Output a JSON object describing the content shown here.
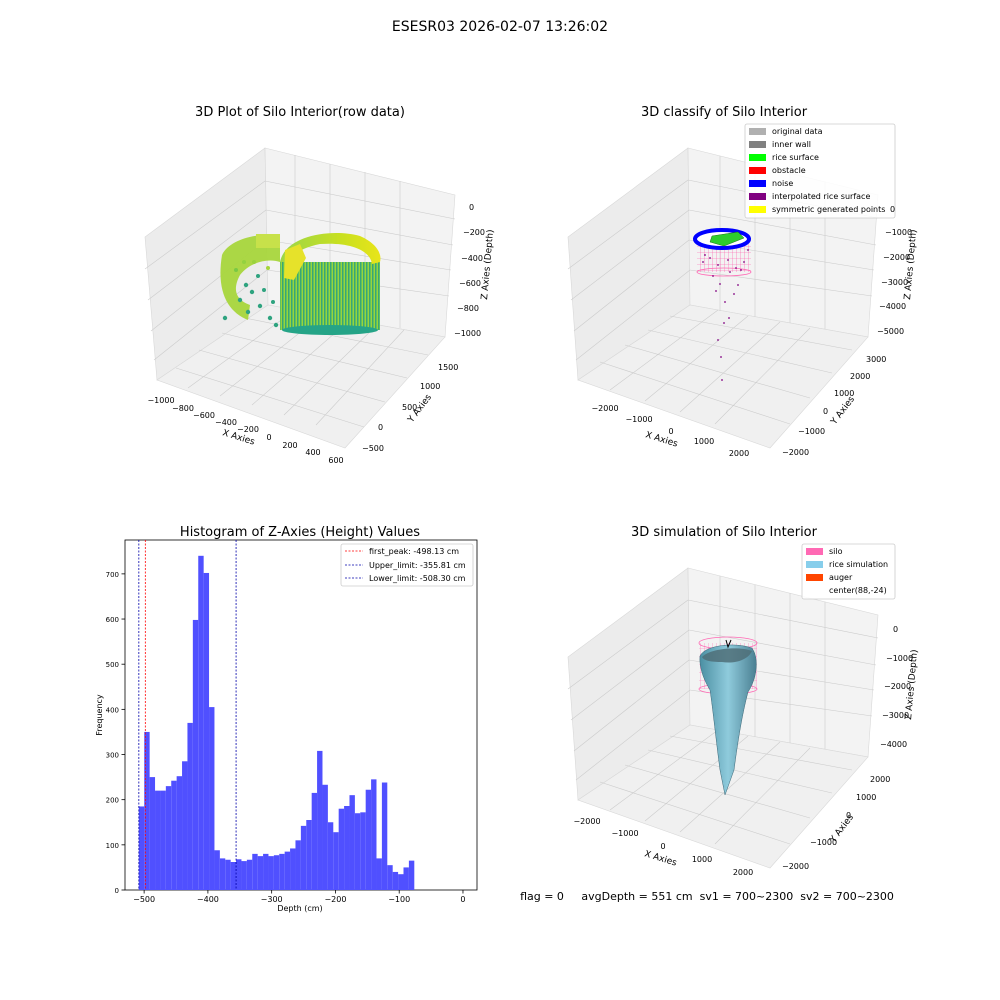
{
  "figure": {
    "suptitle": "ESESR03 2026-02-07 13:26:02",
    "footer": "flag = 0     avgDepth = 551 cm  sv1 = 700~2300  sv2 = 700~2300"
  },
  "panel1": {
    "title": "3D Plot of Silo Interior(row data)",
    "xlabel": "X Axies",
    "ylabel": "Y Axies",
    "zlabel": "Z Axies (Depth)",
    "xticks": [
      "−1000",
      "−800",
      "−600",
      "−400",
      "−200",
      "0",
      "200",
      "400",
      "600"
    ],
    "yticks": [
      "−500",
      "0",
      "500",
      "1000",
      "1500"
    ],
    "zticks": [
      "0",
      "−200",
      "−400",
      "−600",
      "−800",
      "−1000"
    ]
  },
  "panel2": {
    "title": "3D classify of Silo Interior",
    "xlabel": "X Axies",
    "ylabel": "Y Axies",
    "zlabel": "Z Axies (Depth)",
    "xticks": [
      "−2000",
      "−1000",
      "0",
      "1000",
      "2000"
    ],
    "yticks": [
      "−2000",
      "−1000",
      "0",
      "1000",
      "2000",
      "3000"
    ],
    "zticks": [
      "0",
      "−1000",
      "−2000",
      "−3000",
      "−4000",
      "−5000"
    ],
    "legend": [
      {
        "label": "original data",
        "color": "#b0b0b0"
      },
      {
        "label": "inner wall",
        "color": "#808080"
      },
      {
        "label": "rice surface",
        "color": "#00ff00"
      },
      {
        "label": "obstacle",
        "color": "#ff0000"
      },
      {
        "label": "noise",
        "color": "#0000ff"
      },
      {
        "label": "interpolated rice surface",
        "color": "#800080"
      },
      {
        "label": "symmetric generated points",
        "color": "#ffff00"
      }
    ]
  },
  "panel4": {
    "title": "3D simulation of Silo Interior",
    "xlabel": "X Axies",
    "ylabel": "Y Axies",
    "zlabel": "Z Axies (Depth)",
    "xticks": [
      "−2000",
      "−1000",
      "0",
      "1000",
      "2000"
    ],
    "yticks": [
      "−2000",
      "−1000",
      "0",
      "1000",
      "2000"
    ],
    "zticks": [
      "0",
      "−1000",
      "−2000",
      "−3000",
      "−4000"
    ],
    "legend": [
      {
        "label": "silo",
        "color": "#ff69b4"
      },
      {
        "label": "rice simulation",
        "color": "#87ceeb"
      },
      {
        "label": "auger",
        "color": "#ff4500"
      },
      {
        "label": "center(88,-24)",
        "color": "#ffffff"
      }
    ]
  },
  "chart_data": {
    "type": "bar",
    "title": "Histogram of Z-Axies (Height) Values",
    "xlabel": "Depth (cm)",
    "ylabel": "Frequency",
    "xlim": [
      -530,
      22
    ],
    "ylim": [
      0,
      775
    ],
    "xticks": [
      -500,
      -400,
      -300,
      -200,
      -100,
      0
    ],
    "xtick_labels": [
      "−500",
      "−400",
      "−300",
      "−200",
      "−100",
      "0"
    ],
    "yticks": [
      0,
      100,
      200,
      300,
      400,
      500,
      600,
      700
    ],
    "bin_start": -508.3,
    "bin_width": 8.47,
    "bar_color": "#5050ff",
    "values": [
      185,
      350,
      250,
      220,
      220,
      230,
      242,
      252,
      285,
      370,
      598,
      740,
      702,
      405,
      88,
      70,
      67,
      62,
      68,
      64,
      67,
      80,
      75,
      80,
      75,
      77,
      80,
      85,
      92,
      110,
      142,
      155,
      215,
      308,
      233,
      150,
      128,
      180,
      186,
      210,
      170,
      172,
      222,
      245,
      70,
      238,
      55,
      40,
      35,
      50,
      65
    ],
    "vlines": [
      {
        "x": -498.13,
        "label": "first_peak: -498.13 cm",
        "color": "#ff0000"
      },
      {
        "x": -355.81,
        "label": "Upper_limit: -355.81 cm",
        "color": "#0000aa"
      },
      {
        "x": -508.3,
        "label": "Lower_limit: -508.30 cm",
        "color": "#0000aa"
      }
    ],
    "legend_placement": "top-right"
  }
}
